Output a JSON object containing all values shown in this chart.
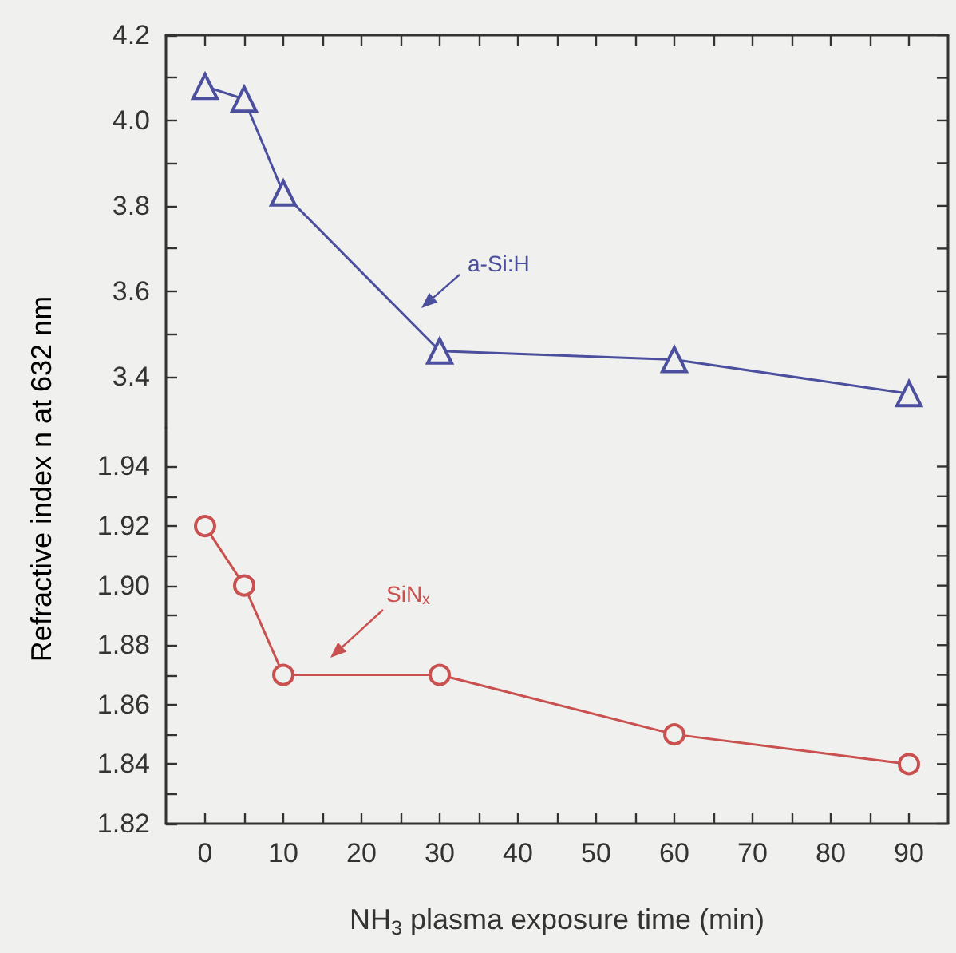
{
  "chart_data": [
    {
      "type": "line",
      "x": [
        0,
        5,
        10,
        30,
        60,
        90
      ],
      "xlim": [
        -5,
        95
      ],
      "xticks": [
        0,
        {
          "value": 5,
          "label": null
        },
        10,
        {
          "value": 15,
          "label": null
        },
        20,
        {
          "value": 25,
          "label": null
        },
        30,
        {
          "value": 35,
          "label": null
        },
        40,
        {
          "value": 45,
          "label": null
        },
        50,
        {
          "value": 55,
          "label": null
        },
        60,
        {
          "value": 65,
          "label": null
        },
        70,
        {
          "value": 75,
          "label": null
        },
        80,
        {
          "value": 85,
          "label": null
        },
        90
      ],
      "ylim": [
        3.28,
        4.2
      ],
      "yticks": [
        3.4,
        {
          "value": 3.5,
          "label": null
        },
        3.6,
        {
          "value": 3.7,
          "label": null
        },
        3.8,
        {
          "value": 3.9,
          "label": null
        },
        {
          "value": 4,
          "label": "4.0"
        },
        {
          "value": 4.1,
          "label": null
        },
        4.2
      ],
      "tick_labels": "y",
      "marker": "triangle",
      "series": [
        {
          "color": "#4b4f9e",
          "values": [
            4.08,
            4.05,
            3.83,
            3.46,
            3.44,
            3.36
          ]
        }
      ],
      "annotations": [
        "a-Si:H"
      ]
    },
    {
      "type": "line",
      "x": [
        0,
        5,
        10,
        30,
        60,
        90
      ],
      "xlim": [
        -5,
        95
      ],
      "xticks": [
        0,
        {
          "value": 5,
          "label": null
        },
        10,
        {
          "value": 15,
          "label": null
        },
        20,
        {
          "value": 25,
          "label": null
        },
        30,
        {
          "value": 35,
          "label": null
        },
        40,
        {
          "value": 45,
          "label": null
        },
        50,
        {
          "value": 55,
          "label": null
        },
        60,
        {
          "value": 65,
          "label": null
        },
        70,
        {
          "value": 75,
          "label": null
        },
        80,
        {
          "value": 85,
          "label": null
        },
        90
      ],
      "ylim": [
        1.82,
        1.953
      ],
      "yticks": [
        1.82,
        {
          "value": 1.83,
          "label": null
        },
        1.84,
        {
          "value": 1.85,
          "label": null
        },
        1.86,
        {
          "value": 1.87,
          "label": null
        },
        1.88,
        {
          "value": 1.89,
          "label": null
        },
        {
          "value": 1.9,
          "label": "1.90"
        },
        {
          "value": 1.91,
          "label": null
        },
        1.92,
        {
          "value": 1.93,
          "label": null
        },
        1.94
      ],
      "marker": "circle",
      "xlabel": "NH$_{3}$ plasma exposure time (min)",
      "ylabel": "Refractive index n at 632 nm",
      "series": [
        {
          "color": "#c9504e",
          "values": [
            1.92,
            1.9,
            1.87,
            1.87,
            1.85,
            1.84
          ]
        }
      ],
      "annotations": [
        "SiN$_{x}$"
      ]
    }
  ]
}
